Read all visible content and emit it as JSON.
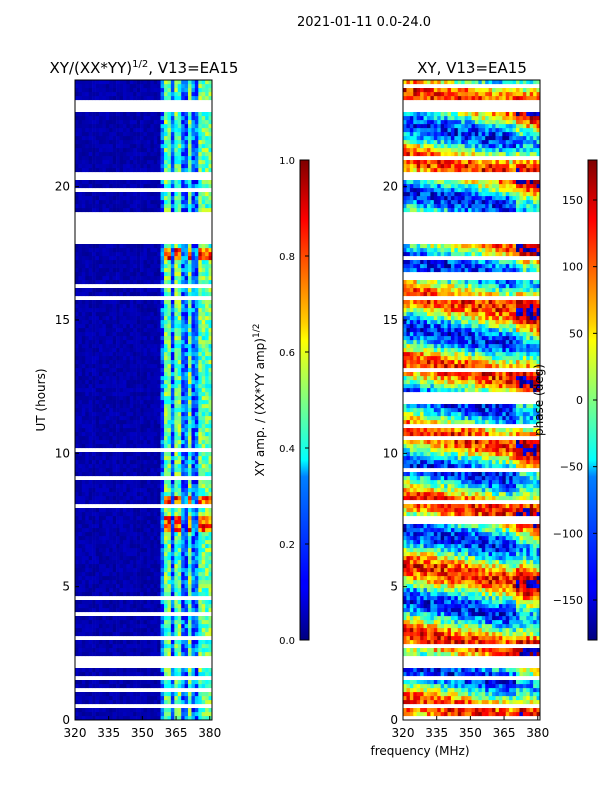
{
  "suptitle": "2021-01-11 0.0-24.0",
  "shared_xlabel": "frequency (MHz)",
  "chart_data": [
    {
      "type": "heatmap",
      "title": "XY/(XX*YY)",
      "title_sup": "1/2",
      "title_suffix": ", V13=EA15",
      "xlabel": "",
      "ylabel": "UT (hours)",
      "xlim": [
        320,
        381
      ],
      "ylim": [
        0,
        24
      ],
      "xticks": [
        320,
        335,
        350,
        365,
        380
      ],
      "yticks": [
        0,
        5,
        10,
        15,
        20
      ],
      "colorbar": {
        "label": "XY amp. / (XX*YY amp)",
        "label_sup": "1/2",
        "range": [
          0.0,
          1.0
        ],
        "ticks": [
          "0.0",
          "0.2",
          "0.4",
          "0.6",
          "0.8",
          "1.0"
        ],
        "colormap": "jet"
      },
      "blank_hour_bands": [
        [
          17.9,
          19.0
        ],
        [
          20.2,
          20.6
        ],
        [
          22.8,
          23.3
        ],
        [
          2.0,
          2.4
        ],
        [
          0.4,
          0.6
        ]
      ],
      "band_freqs_mhz": [
        361,
        366,
        371,
        376,
        380
      ],
      "notes": "Mostly near 0 amplitude; elevated values (0.3-0.9) in 360-381 MHz band; hot streaks near 17.5 h and 7.5 h"
    },
    {
      "type": "heatmap",
      "title": "XY, V13=EA15",
      "xlabel": "frequency (MHz)",
      "ylabel": "",
      "xlim": [
        320,
        381
      ],
      "ylim": [
        0,
        24
      ],
      "xticks": [
        320,
        335,
        350,
        365,
        380
      ],
      "yticks": [
        0,
        5,
        10,
        15,
        20
      ],
      "colorbar": {
        "label": "phase (deg)",
        "range": [
          -180,
          180
        ],
        "ticks": [
          "−150",
          "−100",
          "−50",
          "0",
          "50",
          "100",
          "150"
        ],
        "tick_values": [
          -150,
          -100,
          -50,
          0,
          50,
          100,
          150
        ],
        "colormap": "jet"
      },
      "blank_hour_bands": [
        [
          17.9,
          19.0
        ],
        [
          20.2,
          20.6
        ],
        [
          22.8,
          23.3
        ],
        [
          2.0,
          2.4
        ],
        [
          0.4,
          0.6
        ]
      ],
      "notes": "Phase values span full -180 to 180 deg range across all frequencies"
    }
  ]
}
